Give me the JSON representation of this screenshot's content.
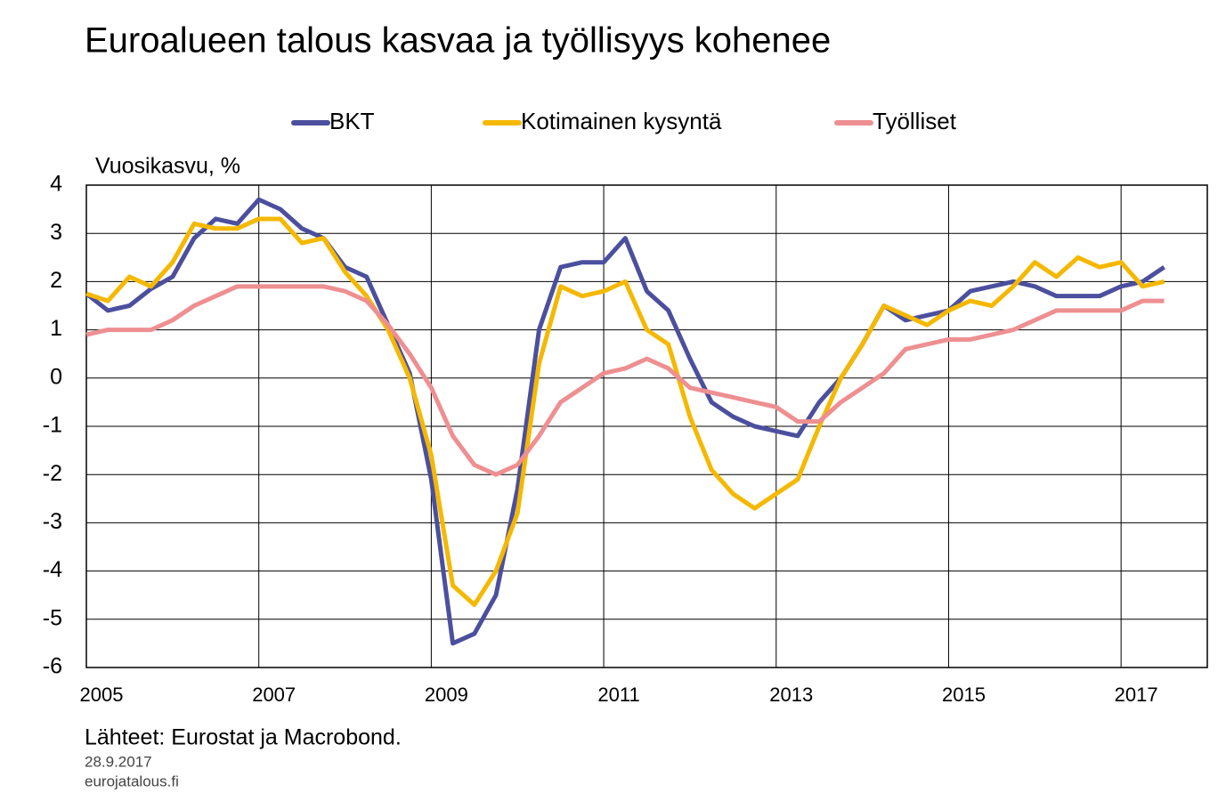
{
  "chart_data": {
    "type": "line",
    "title": "Euroalueen talous kasvaa ja työllisyys kohenee",
    "y_label": "Vuosikasvu, %",
    "source": "Lähteet: Eurostat ja Macrobond.",
    "date": "28.9.2017",
    "site": "eurojatalous.fi",
    "legend_position": "top",
    "grid": true,
    "x": [
      2005,
      2005.25,
      2005.5,
      2005.75,
      2006,
      2006.25,
      2006.5,
      2006.75,
      2007,
      2007.25,
      2007.5,
      2007.75,
      2008,
      2008.25,
      2008.5,
      2008.75,
      2009,
      2009.25,
      2009.5,
      2009.75,
      2010,
      2010.25,
      2010.5,
      2010.75,
      2011,
      2011.25,
      2011.5,
      2011.75,
      2012,
      2012.25,
      2012.5,
      2012.75,
      2013,
      2013.25,
      2013.5,
      2013.75,
      2014,
      2014.25,
      2014.5,
      2014.75,
      2015,
      2015.25,
      2015.5,
      2015.75,
      2016,
      2016.25,
      2016.5,
      2016.75,
      2017,
      2017.25,
      2017.5
    ],
    "xlim": [
      2005,
      2018
    ],
    "xticks": [
      2005,
      2007,
      2009,
      2011,
      2013,
      2015,
      2017
    ],
    "ylim": [
      -6,
      4
    ],
    "yticks": [
      -6,
      -5,
      -4,
      -3,
      -2,
      -1,
      0,
      1,
      2,
      3,
      4
    ],
    "series": [
      {
        "name": "BKT",
        "color": "#4b4f9e",
        "values": [
          1.75,
          1.4,
          1.5,
          1.85,
          2.1,
          2.9,
          3.3,
          3.2,
          3.7,
          3.5,
          3.1,
          2.9,
          2.3,
          2.1,
          1.1,
          0.1,
          -2.1,
          -5.5,
          -5.3,
          -4.5,
          -2.3,
          1.0,
          2.3,
          2.4,
          2.4,
          2.9,
          1.8,
          1.4,
          0.4,
          -0.5,
          -0.8,
          -1.0,
          -1.1,
          -1.2,
          -0.5,
          0.0,
          0.7,
          1.5,
          1.2,
          1.3,
          1.4,
          1.8,
          1.9,
          2.0,
          1.9,
          1.7,
          1.7,
          1.7,
          1.9,
          2.0,
          2.3
        ]
      },
      {
        "name": "Kotimainen kysyntä",
        "color": "#f5b800",
        "values": [
          1.75,
          1.6,
          2.1,
          1.9,
          2.4,
          3.2,
          3.1,
          3.1,
          3.3,
          3.3,
          2.8,
          2.9,
          2.2,
          1.7,
          1.0,
          0.0,
          -1.6,
          -4.3,
          -4.7,
          -4.0,
          -2.8,
          0.3,
          1.9,
          1.7,
          1.8,
          2.0,
          1.0,
          0.7,
          -0.8,
          -1.9,
          -2.4,
          -2.7,
          -2.4,
          -2.1,
          -1.0,
          0.0,
          0.7,
          1.5,
          1.3,
          1.1,
          1.4,
          1.6,
          1.5,
          1.9,
          2.4,
          2.1,
          2.5,
          2.3,
          2.4,
          1.9,
          2.0
        ]
      },
      {
        "name": "Työlliset",
        "color": "#ee8f91",
        "values": [
          0.9,
          1.0,
          1.0,
          1.0,
          1.2,
          1.5,
          1.7,
          1.9,
          1.9,
          1.9,
          1.9,
          1.9,
          1.8,
          1.6,
          1.1,
          0.5,
          -0.2,
          -1.2,
          -1.8,
          -2.0,
          -1.8,
          -1.2,
          -0.5,
          -0.2,
          0.1,
          0.2,
          0.4,
          0.2,
          -0.2,
          -0.3,
          -0.4,
          -0.5,
          -0.6,
          -0.9,
          -0.9,
          -0.5,
          -0.2,
          0.1,
          0.6,
          0.7,
          0.8,
          0.8,
          0.9,
          1.0,
          1.2,
          1.4,
          1.4,
          1.4,
          1.4,
          1.6,
          1.6
        ]
      }
    ]
  }
}
